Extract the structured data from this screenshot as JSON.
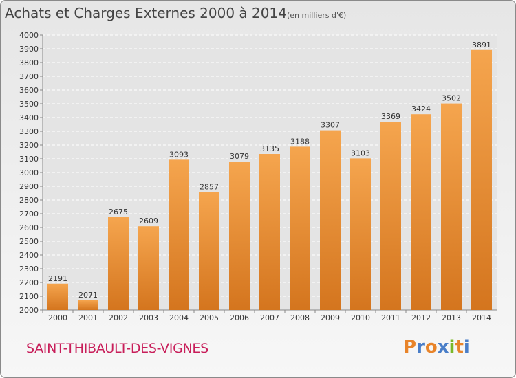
{
  "chart_data": {
    "type": "bar",
    "title": "Achats et Charges Externes 2000 à 2014",
    "subtitle": "(en milliers d'€)",
    "categories": [
      "2000",
      "2001",
      "2002",
      "2003",
      "2004",
      "2005",
      "2006",
      "2007",
      "2008",
      "2009",
      "2010",
      "2011",
      "2012",
      "2013",
      "2014"
    ],
    "values": [
      2191,
      2071,
      2675,
      2609,
      3093,
      2857,
      3079,
      3135,
      3188,
      3307,
      3103,
      3369,
      3424,
      3502,
      3891
    ],
    "value_labels": [
      "2191",
      "2071",
      "2675",
      "2609",
      "3093",
      "2857",
      "3079",
      "3135",
      "3188",
      "3307",
      "3103",
      "3369",
      "3424",
      "3502",
      "3891"
    ],
    "ylim": [
      2000,
      4000
    ],
    "y_ticks": [
      "2000",
      "2100",
      "2200",
      "2300",
      "2400",
      "2500",
      "2600",
      "2700",
      "2800",
      "2900",
      "3000",
      "3100",
      "3200",
      "3300",
      "3400",
      "3500",
      "3600",
      "3700",
      "3800",
      "3900",
      "4000"
    ],
    "xlabel": "",
    "ylabel": "",
    "grid": "horizontal dashed",
    "bar_color_top": "#f5a54e",
    "bar_color_bottom": "#d4751e"
  },
  "footer": {
    "city": "SAINT-THIBAULT-DES-VIGNES",
    "brand_letters": [
      "P",
      "r",
      "o",
      "x",
      "i",
      "t",
      "i"
    ],
    "brand_colors": [
      "#e8842a",
      "#4a7ec8",
      "#e8842a",
      "#4a7ec8",
      "#7ab828",
      "#e8842a",
      "#4a7ec8"
    ]
  }
}
